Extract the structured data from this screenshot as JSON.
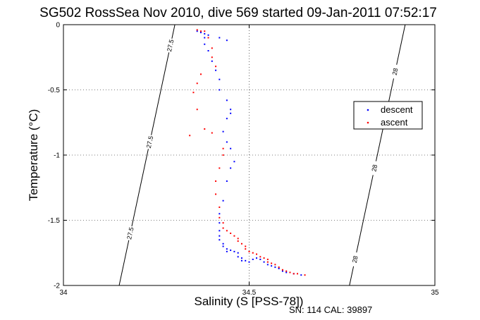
{
  "chart_data": {
    "type": "scatter",
    "title": "SG502 RossSea Nov 2010, dive 569 started 09-Jan-2011 07:52:17",
    "xlabel": "Salinity (S [PSS-78])",
    "ylabel": "Temperature (°C)",
    "xlim": [
      34,
      35
    ],
    "ylim": [
      -2,
      0
    ],
    "xticks": [
      34,
      34.5,
      35
    ],
    "yticks": [
      0,
      -0.5,
      -1,
      -1.5,
      -2
    ],
    "xtick_labels": [
      "34",
      "34.5",
      "35"
    ],
    "ytick_labels": [
      "0",
      "-0.5",
      "-1",
      "-1.5",
      "-2"
    ],
    "grid": "dotted",
    "legend_position": "right",
    "footnote": "SN: 114  CAL: 39897",
    "series": [
      {
        "name": "descent",
        "color": "#0000ff",
        "points": [
          [
            34.36,
            -0.05
          ],
          [
            34.37,
            -0.06
          ],
          [
            34.38,
            -0.07
          ],
          [
            34.39,
            -0.08
          ],
          [
            34.42,
            -0.1
          ],
          [
            34.44,
            -0.12
          ],
          [
            34.38,
            -0.1
          ],
          [
            34.38,
            -0.15
          ],
          [
            34.39,
            -0.2
          ],
          [
            34.4,
            -0.28
          ],
          [
            34.41,
            -0.35
          ],
          [
            34.42,
            -0.42
          ],
          [
            34.42,
            -0.5
          ],
          [
            34.44,
            -0.58
          ],
          [
            34.45,
            -0.65
          ],
          [
            34.45,
            -0.68
          ],
          [
            34.44,
            -0.72
          ],
          [
            34.43,
            -0.82
          ],
          [
            34.44,
            -0.9
          ],
          [
            34.45,
            -0.95
          ],
          [
            34.46,
            -1.05
          ],
          [
            34.45,
            -1.1
          ],
          [
            34.44,
            -1.2
          ],
          [
            34.43,
            -1.35
          ],
          [
            34.42,
            -1.45
          ],
          [
            34.42,
            -1.52
          ],
          [
            34.42,
            -1.58
          ],
          [
            34.42,
            -1.62
          ],
          [
            34.42,
            -1.65
          ],
          [
            34.43,
            -1.68
          ],
          [
            34.43,
            -1.7
          ],
          [
            34.44,
            -1.72
          ],
          [
            34.44,
            -1.74
          ],
          [
            34.45,
            -1.73
          ],
          [
            34.46,
            -1.74
          ],
          [
            34.47,
            -1.75
          ],
          [
            34.47,
            -1.78
          ],
          [
            34.48,
            -1.79
          ],
          [
            34.48,
            -1.81
          ],
          [
            34.49,
            -1.81
          ],
          [
            34.5,
            -1.82
          ],
          [
            34.51,
            -1.8
          ],
          [
            34.52,
            -1.79
          ],
          [
            34.53,
            -1.8
          ],
          [
            34.54,
            -1.82
          ],
          [
            34.55,
            -1.84
          ],
          [
            34.56,
            -1.85
          ],
          [
            34.57,
            -1.86
          ],
          [
            34.58,
            -1.87
          ],
          [
            34.59,
            -1.89
          ],
          [
            34.6,
            -1.9
          ],
          [
            34.62,
            -1.91
          ],
          [
            34.64,
            -1.92
          ]
        ]
      },
      {
        "name": "ascent",
        "color": "#ff0000",
        "points": [
          [
            34.36,
            -0.04
          ],
          [
            34.37,
            -0.05
          ],
          [
            34.38,
            -0.05
          ],
          [
            34.39,
            -0.1
          ],
          [
            34.4,
            -0.18
          ],
          [
            34.4,
            -0.25
          ],
          [
            34.41,
            -0.32
          ],
          [
            34.37,
            -0.38
          ],
          [
            34.36,
            -0.45
          ],
          [
            34.35,
            -0.52
          ],
          [
            34.36,
            -0.65
          ],
          [
            34.34,
            -0.85
          ],
          [
            34.38,
            -0.8
          ],
          [
            34.4,
            -0.83
          ],
          [
            34.43,
            -0.95
          ],
          [
            34.43,
            -1.0
          ],
          [
            34.42,
            -1.1
          ],
          [
            34.41,
            -1.2
          ],
          [
            34.41,
            -1.3
          ],
          [
            34.42,
            -1.4
          ],
          [
            34.42,
            -1.48
          ],
          [
            34.43,
            -1.52
          ],
          [
            34.43,
            -1.56
          ],
          [
            34.44,
            -1.58
          ],
          [
            34.45,
            -1.6
          ],
          [
            34.46,
            -1.62
          ],
          [
            34.47,
            -1.64
          ],
          [
            34.47,
            -1.66
          ],
          [
            34.48,
            -1.68
          ],
          [
            34.49,
            -1.7
          ],
          [
            34.49,
            -1.72
          ],
          [
            34.5,
            -1.74
          ],
          [
            34.51,
            -1.75
          ],
          [
            34.52,
            -1.76
          ],
          [
            34.53,
            -1.78
          ],
          [
            34.54,
            -1.79
          ],
          [
            34.55,
            -1.8
          ],
          [
            34.55,
            -1.82
          ],
          [
            34.56,
            -1.83
          ],
          [
            34.57,
            -1.84
          ],
          [
            34.58,
            -1.86
          ],
          [
            34.59,
            -1.88
          ],
          [
            34.6,
            -1.89
          ],
          [
            34.61,
            -1.9
          ],
          [
            34.62,
            -1.91
          ],
          [
            34.63,
            -1.91
          ],
          [
            34.65,
            -1.92
          ]
        ]
      }
    ],
    "contours": [
      {
        "label": "27.5",
        "color": "#000000",
        "points": [
          [
            34.15,
            -2.0
          ],
          [
            34.3,
            0.0
          ]
        ],
        "label_positions": [
          0.8,
          0.45,
          0.08
        ]
      },
      {
        "label": "28",
        "color": "#000000",
        "points": [
          [
            34.77,
            -2.0
          ],
          [
            34.92,
            0.0
          ]
        ],
        "label_positions": [
          0.9,
          0.55,
          0.18
        ]
      }
    ]
  }
}
